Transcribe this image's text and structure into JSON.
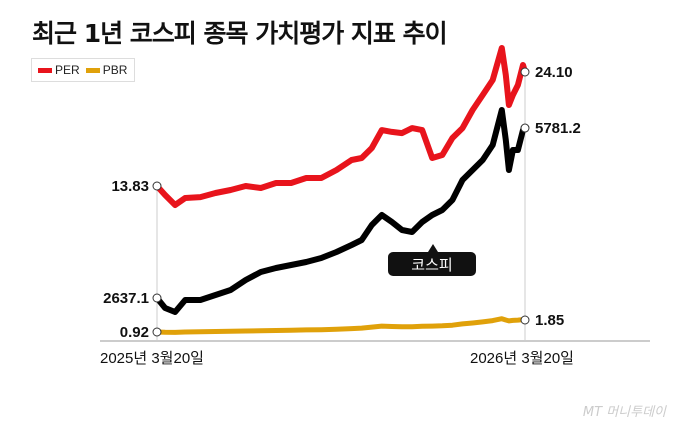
{
  "title": "최근 1년 코스피 종목 가치평가 지표 추이",
  "logo": "MT 머니투데이",
  "chart_data": {
    "type": "line",
    "title": "최근 1년 코스피 종목 가치평가 지표 추이",
    "legend": {
      "position": "top-left",
      "entries": [
        "PER",
        "PBR"
      ]
    },
    "grid": false,
    "x_tick_labels": [
      "2025년 3월20일",
      "2026년 3월20일"
    ],
    "annotation": "코스피",
    "colors": {
      "PER": "#e8141c",
      "PBR": "#e0a10a",
      "코스피": "#000000"
    },
    "x": [
      "2025-03-20",
      "2025-03-28",
      "2025-04-07",
      "2025-04-17",
      "2025-05-02",
      "2025-05-17",
      "2025-06-01",
      "2025-06-16",
      "2025-07-01",
      "2025-07-16",
      "2025-07-31",
      "2025-08-15",
      "2025-08-30",
      "2025-09-14",
      "2025-09-29",
      "2025-10-09",
      "2025-10-19",
      "2025-10-29",
      "2025-11-08",
      "2025-11-18",
      "2025-11-28",
      "2025-12-08",
      "2025-12-18",
      "2025-12-28",
      "2026-01-07",
      "2026-01-17",
      "2026-01-27",
      "2026-02-06",
      "2026-02-16",
      "2026-02-25",
      "2026-03-01",
      "2026-03-04",
      "2026-03-08",
      "2026-03-13",
      "2026-03-18",
      "2026-03-20"
    ],
    "series": [
      {
        "name": "PER",
        "start_label": "13.83",
        "end_label": "24.10",
        "values": [
          13.83,
          13.02,
          12.12,
          12.75,
          12.83,
          13.2,
          13.47,
          13.83,
          13.65,
          14.1,
          14.1,
          14.55,
          14.55,
          15.27,
          16.17,
          16.35,
          17.25,
          18.87,
          18.7,
          18.6,
          19.05,
          18.87,
          16.35,
          16.62,
          18.15,
          19.05,
          20.68,
          22.03,
          23.38,
          26.26,
          23.83,
          21.13,
          22.03,
          22.93,
          24.73,
          24.1
        ]
      },
      {
        "name": "코스피",
        "start_label": "2637.1",
        "end_label": "5781.2",
        "values": [
          2637.1,
          2452,
          2378,
          2600,
          2600,
          2693,
          2785,
          2970,
          3118,
          3192,
          3248,
          3303,
          3377,
          3488,
          3618,
          3710,
          3988,
          4173,
          4043,
          3895,
          3858,
          4043,
          4173,
          4265,
          4450,
          4820,
          5005,
          5190,
          5468,
          6115,
          5560,
          5005,
          5375,
          5375,
          5745,
          5781.2
        ]
      },
      {
        "name": "PBR",
        "start_label": "0.92",
        "end_label": "1.85",
        "values": [
          0.92,
          0.9,
          0.89,
          0.92,
          0.94,
          0.96,
          0.98,
          1.0,
          1.02,
          1.04,
          1.06,
          1.08,
          1.1,
          1.13,
          1.18,
          1.22,
          1.3,
          1.38,
          1.35,
          1.32,
          1.33,
          1.36,
          1.38,
          1.4,
          1.45,
          1.55,
          1.62,
          1.7,
          1.8,
          1.95,
          1.85,
          1.78,
          1.82,
          1.84,
          1.88,
          1.85
        ]
      }
    ]
  }
}
